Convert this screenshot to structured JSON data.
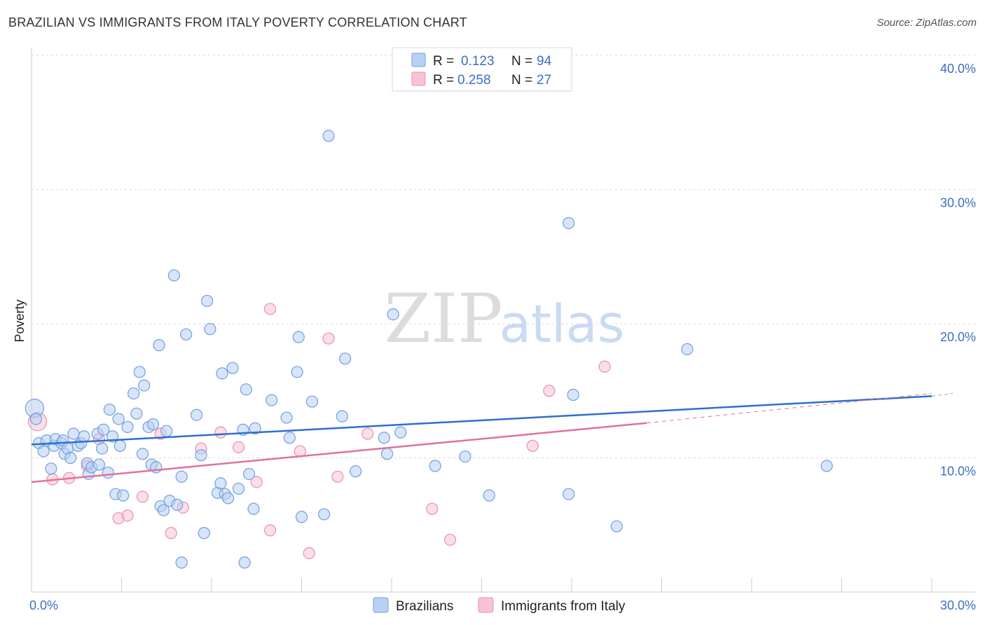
{
  "title": "BRAZILIAN VS IMMIGRANTS FROM ITALY POVERTY CORRELATION CHART",
  "source": "Source: ZipAtlas.com",
  "watermark": {
    "zip": "ZIP",
    "atlas": "atlas"
  },
  "colors": {
    "blue": "#6f9fe0",
    "blue_fill": "#b8d0f3",
    "blue_line": "#2f6fce",
    "pink": "#e890ae",
    "pink_fill": "#f7c3d4",
    "pink_line": "#e0729a",
    "grid": "#d8d8d8",
    "tick_text": "#3a6fc4"
  },
  "chart_data": {
    "type": "scatter",
    "title": "BRAZILIAN VS IMMIGRANTS FROM ITALY POVERTY CORRELATION CHART",
    "xlabel": "",
    "ylabel": "Poverty",
    "xlim": [
      0,
      30
    ],
    "ylim": [
      0,
      40
    ],
    "x_tick_labels": [
      "0.0%",
      "30.0%"
    ],
    "y_ticks": [
      10,
      20,
      30,
      40
    ],
    "y_tick_labels": [
      "10.0%",
      "20.0%",
      "30.0%",
      "40.0%"
    ],
    "legend": [
      {
        "r_label": "R =",
        "r_value": "0.123",
        "n_label": "N =",
        "n_value": "94"
      },
      {
        "r_label": "R =",
        "r_value": "0.258",
        "n_label": "N =",
        "n_value": "27"
      }
    ],
    "series": [
      {
        "name": "Brazilians",
        "trend": {
          "x0": 0,
          "y0": 11.0,
          "x1": 30,
          "y1": 14.6,
          "dash_to": 30
        },
        "points": [
          [
            0.1,
            13.7
          ],
          [
            0.15,
            12.9
          ],
          [
            0.25,
            11.1
          ],
          [
            0.4,
            10.5
          ],
          [
            0.5,
            11.3
          ],
          [
            0.65,
            9.2
          ],
          [
            0.75,
            10.9
          ],
          [
            0.8,
            11.4
          ],
          [
            1.0,
            11.1
          ],
          [
            1.05,
            11.3
          ],
          [
            1.1,
            10.3
          ],
          [
            1.2,
            10.7
          ],
          [
            1.3,
            10.0
          ],
          [
            1.4,
            11.8
          ],
          [
            1.55,
            10.9
          ],
          [
            1.65,
            11.1
          ],
          [
            1.75,
            11.6
          ],
          [
            1.85,
            9.6
          ],
          [
            1.9,
            8.8
          ],
          [
            2.0,
            9.3
          ],
          [
            2.2,
            11.8
          ],
          [
            2.25,
            9.5
          ],
          [
            2.35,
            10.7
          ],
          [
            2.4,
            12.1
          ],
          [
            2.55,
            8.9
          ],
          [
            2.6,
            13.6
          ],
          [
            2.7,
            11.6
          ],
          [
            2.8,
            7.3
          ],
          [
            2.9,
            12.9
          ],
          [
            2.95,
            10.9
          ],
          [
            3.05,
            7.2
          ],
          [
            3.2,
            12.3
          ],
          [
            3.4,
            14.8
          ],
          [
            3.5,
            13.3
          ],
          [
            3.6,
            16.4
          ],
          [
            3.7,
            10.3
          ],
          [
            3.75,
            15.4
          ],
          [
            3.9,
            12.3
          ],
          [
            4.0,
            9.5
          ],
          [
            4.05,
            12.5
          ],
          [
            4.15,
            9.3
          ],
          [
            4.25,
            18.4
          ],
          [
            4.3,
            6.4
          ],
          [
            4.4,
            6.1
          ],
          [
            4.5,
            12.0
          ],
          [
            4.6,
            6.8
          ],
          [
            4.75,
            23.6
          ],
          [
            4.85,
            6.5
          ],
          [
            5.0,
            8.6
          ],
          [
            5.15,
            19.2
          ],
          [
            5.5,
            13.2
          ],
          [
            5.65,
            10.2
          ],
          [
            5.75,
            4.4
          ],
          [
            5.85,
            21.7
          ],
          [
            5.95,
            19.6
          ],
          [
            6.2,
            7.4
          ],
          [
            6.3,
            8.1
          ],
          [
            6.35,
            16.3
          ],
          [
            6.45,
            7.3
          ],
          [
            6.55,
            7.0
          ],
          [
            6.7,
            16.7
          ],
          [
            6.9,
            7.7
          ],
          [
            7.05,
            12.1
          ],
          [
            7.1,
            2.2
          ],
          [
            7.15,
            15.1
          ],
          [
            7.25,
            8.8
          ],
          [
            7.4,
            6.2
          ],
          [
            7.45,
            12.2
          ],
          [
            8.0,
            14.3
          ],
          [
            8.5,
            13.0
          ],
          [
            8.85,
            16.4
          ],
          [
            8.9,
            19.0
          ],
          [
            9.0,
            5.6
          ],
          [
            9.35,
            14.2
          ],
          [
            9.75,
            5.8
          ],
          [
            9.9,
            34.0
          ],
          [
            10.35,
            13.1
          ],
          [
            10.45,
            17.4
          ],
          [
            10.8,
            9.0
          ],
          [
            11.75,
            11.5
          ],
          [
            11.85,
            10.3
          ],
          [
            12.05,
            20.7
          ],
          [
            12.3,
            11.9
          ],
          [
            13.45,
            9.4
          ],
          [
            14.45,
            10.1
          ],
          [
            15.25,
            7.2
          ],
          [
            17.9,
            27.5
          ],
          [
            17.9,
            7.3
          ],
          [
            18.05,
            14.7
          ],
          [
            19.5,
            4.9
          ],
          [
            21.85,
            18.1
          ],
          [
            26.5,
            9.4
          ],
          [
            5.0,
            2.2
          ],
          [
            8.6,
            11.5
          ]
        ]
      },
      {
        "name": "Immigrants from Italy",
        "trend": {
          "x0": 0,
          "y0": 8.2,
          "x1": 20.5,
          "y1": 12.6,
          "dash_to": 30,
          "dash_y": 14.8
        },
        "points": [
          [
            0.2,
            12.7
          ],
          [
            0.7,
            8.4
          ],
          [
            1.25,
            8.5
          ],
          [
            1.85,
            9.4
          ],
          [
            2.25,
            11.4
          ],
          [
            2.9,
            5.5
          ],
          [
            3.2,
            5.7
          ],
          [
            3.7,
            7.1
          ],
          [
            4.3,
            11.8
          ],
          [
            4.65,
            4.4
          ],
          [
            5.05,
            6.3
          ],
          [
            5.65,
            10.7
          ],
          [
            6.3,
            11.9
          ],
          [
            6.9,
            10.8
          ],
          [
            7.5,
            8.2
          ],
          [
            7.95,
            21.1
          ],
          [
            7.95,
            4.6
          ],
          [
            8.95,
            10.5
          ],
          [
            9.25,
            2.9
          ],
          [
            9.9,
            18.9
          ],
          [
            10.2,
            8.6
          ],
          [
            11.2,
            11.8
          ],
          [
            13.35,
            6.2
          ],
          [
            13.95,
            3.9
          ],
          [
            16.7,
            10.9
          ],
          [
            17.25,
            15.0
          ],
          [
            19.1,
            16.8
          ]
        ]
      }
    ]
  }
}
